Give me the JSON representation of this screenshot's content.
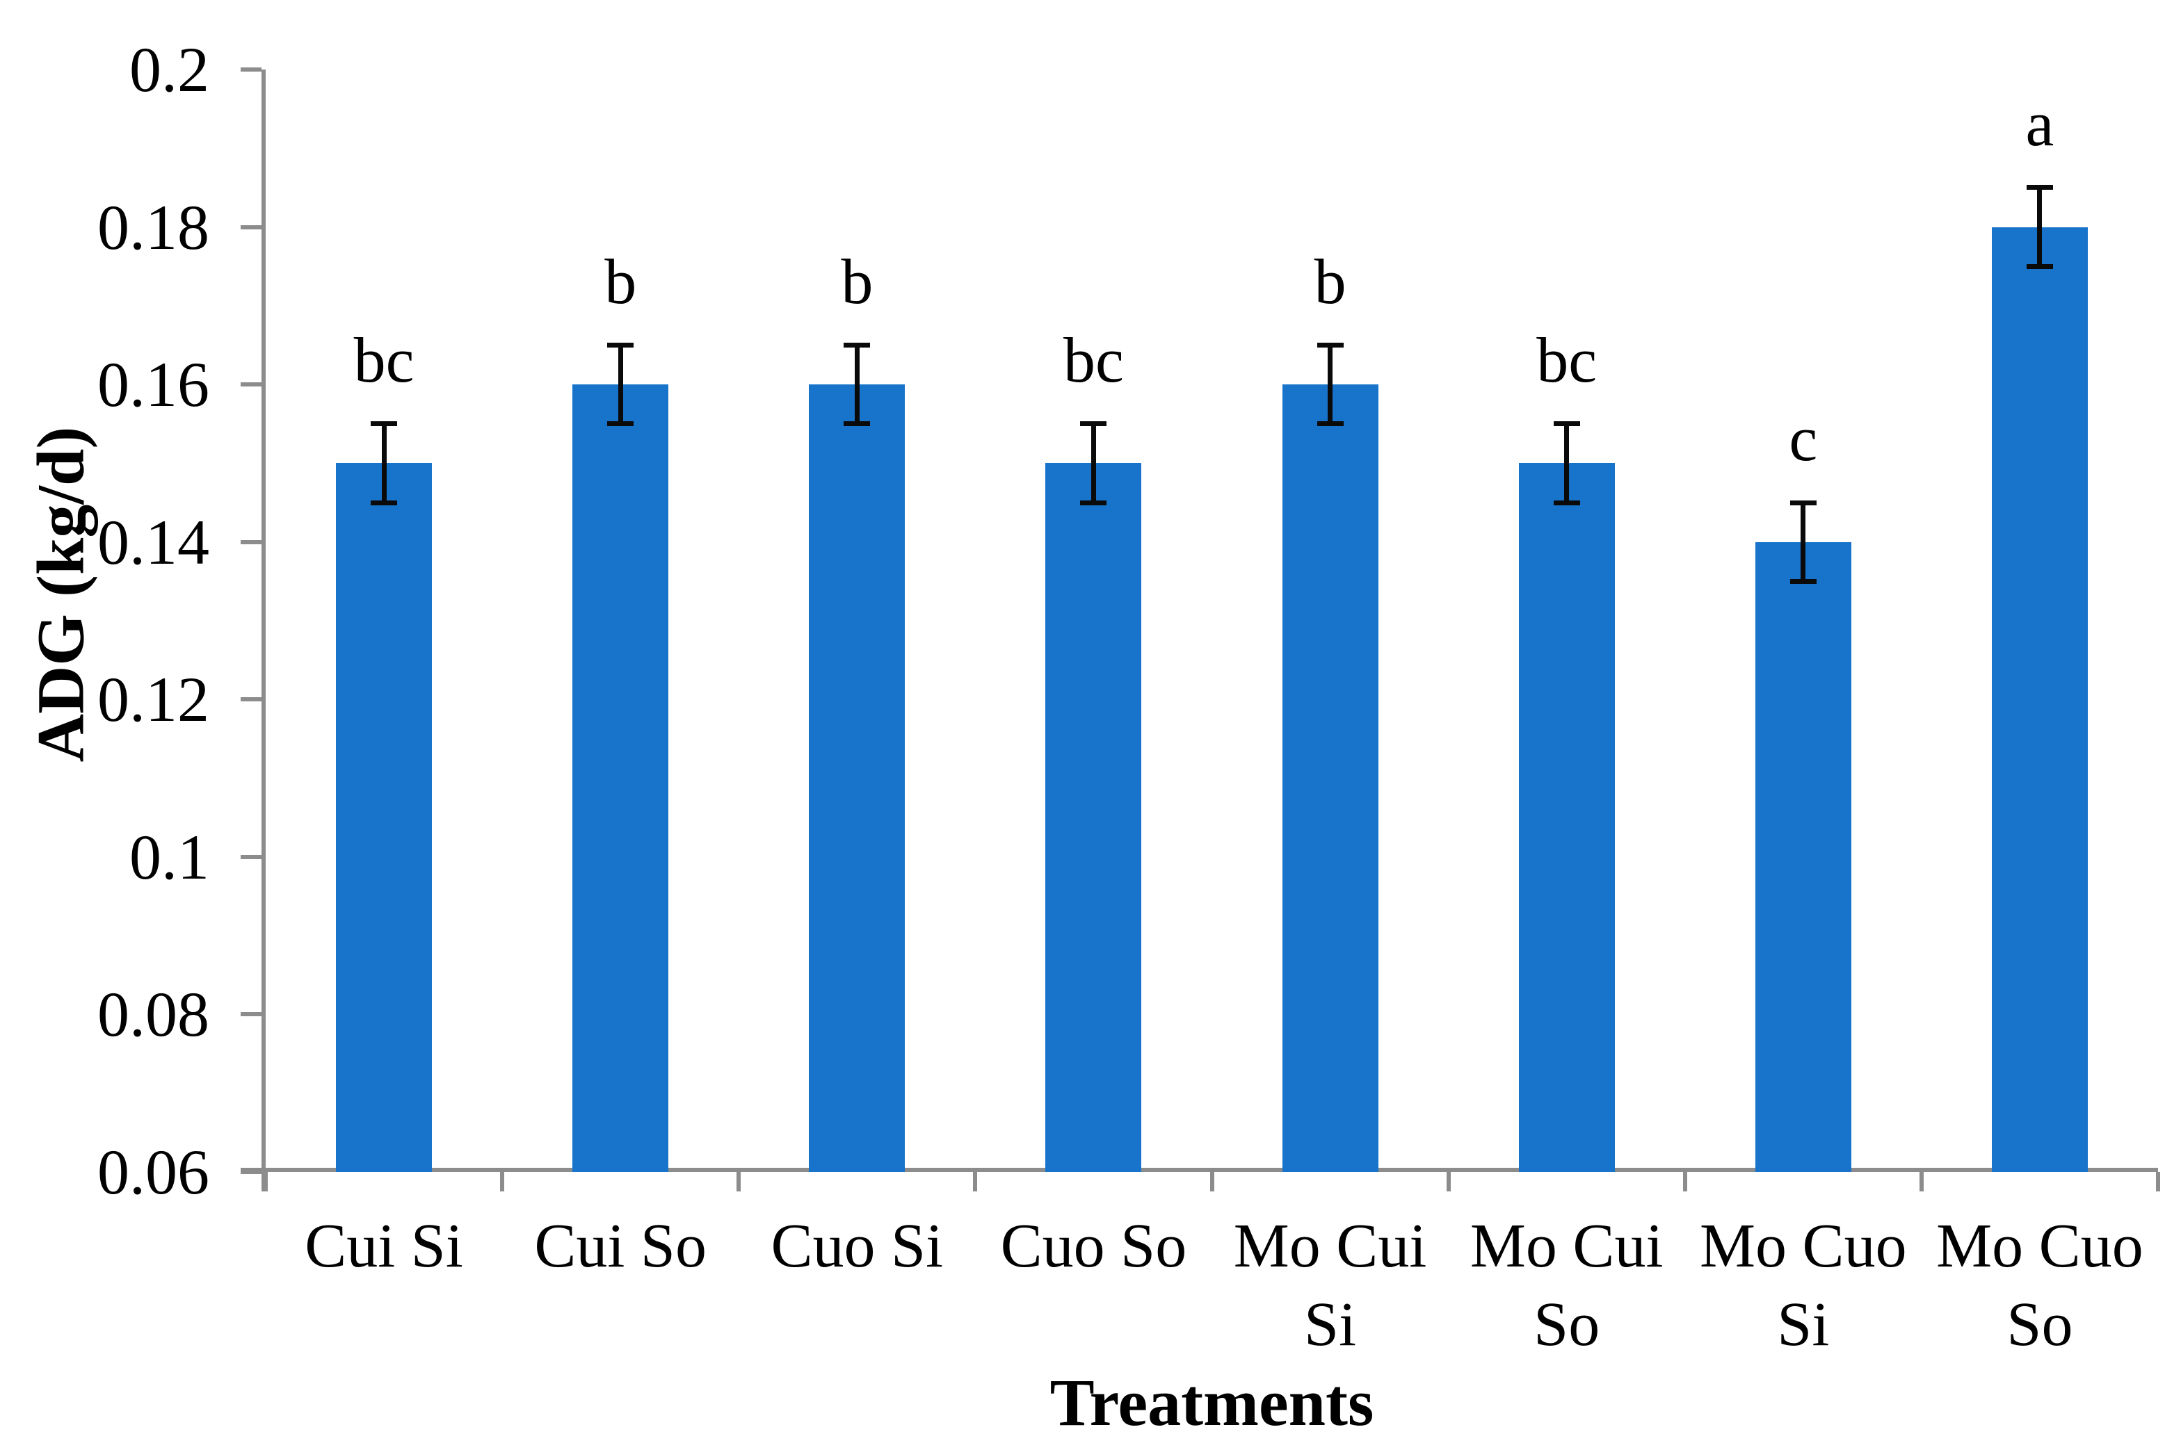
{
  "chart_data": {
    "type": "bar",
    "title": "",
    "xlabel": "Treatments",
    "ylabel": "ADG (kg/d)",
    "categories": [
      "Cui Si",
      "Cui So",
      "Cuo Si",
      "Cuo So",
      "Mo Cui Si",
      "Mo Cui So",
      "Mo Cuo Si",
      "Mo Cuo So"
    ],
    "category_label_lines": [
      [
        "Cui Si"
      ],
      [
        "Cui So"
      ],
      [
        "Cuo Si"
      ],
      [
        "Cuo So"
      ],
      [
        "Mo Cui",
        "Si"
      ],
      [
        "Mo Cui",
        "So"
      ],
      [
        "Mo Cuo",
        "Si"
      ],
      [
        "Mo Cuo",
        "So"
      ]
    ],
    "values": [
      0.15,
      0.16,
      0.16,
      0.15,
      0.16,
      0.15,
      0.14,
      0.18
    ],
    "error_bars": [
      0.005,
      0.005,
      0.005,
      0.005,
      0.005,
      0.005,
      0.005,
      0.005
    ],
    "significance_letters": [
      "bc",
      "b",
      "b",
      "bc",
      "b",
      "bc",
      "c",
      "a"
    ],
    "ylim": [
      0.06,
      0.2
    ],
    "y_ticks": [
      {
        "value": 0.2,
        "label": "0.2"
      },
      {
        "value": 0.18,
        "label": "0.18"
      },
      {
        "value": 0.16,
        "label": "0.16"
      },
      {
        "value": 0.14,
        "label": "0.14"
      },
      {
        "value": 0.12,
        "label": "0.12"
      },
      {
        "value": 0.1,
        "label": "0.1"
      },
      {
        "value": 0.08,
        "label": "0.08"
      },
      {
        "value": 0.06,
        "label": "0.06"
      }
    ],
    "grid": false,
    "legend": "none",
    "bar_color": "#1874cb",
    "axis_color": "#8c8c8c",
    "error_bar_color": "#0a0a0a",
    "text_color": "#000000"
  }
}
